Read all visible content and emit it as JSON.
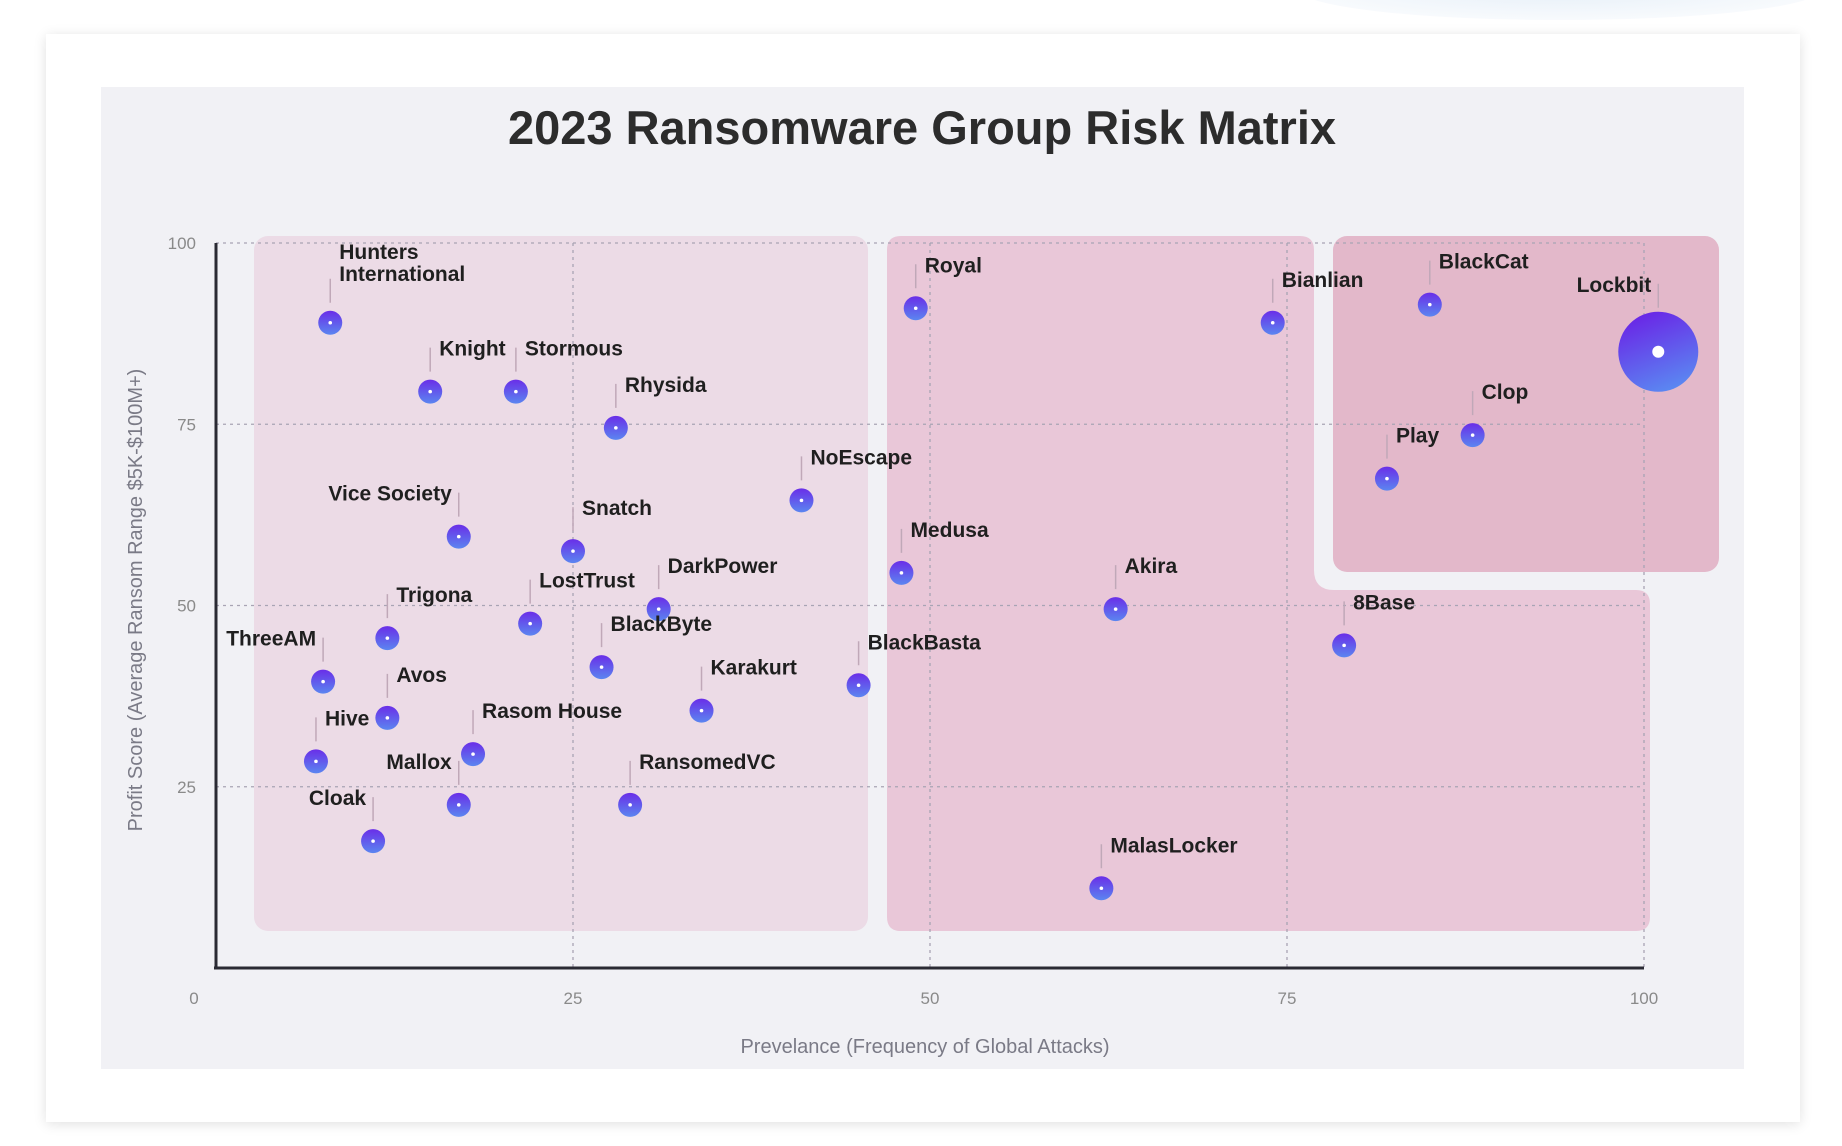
{
  "chart_data": {
    "type": "scatter",
    "title": "2023 Ransomware Group Risk Matrix",
    "xlabel": "Prevelance (Frequency of Global Attacks)",
    "ylabel": "Profit Score (Average Ransom Range  $5K-$100M+)",
    "xlim": [
      0,
      100
    ],
    "ylim": [
      0,
      100
    ],
    "xticks": [
      "0",
      "25",
      "50",
      "75",
      "100"
    ],
    "yticks": [
      "25",
      "50",
      "75",
      "100"
    ],
    "grid": true,
    "points": [
      {
        "name": "Hunters International",
        "x": 8,
        "y": 89,
        "label_side": "right"
      },
      {
        "name": "Knight",
        "x": 15,
        "y": 79.5,
        "label_side": "right"
      },
      {
        "name": "Stormous",
        "x": 21,
        "y": 79.5,
        "label_side": "right"
      },
      {
        "name": "Rhysida",
        "x": 28,
        "y": 74.5,
        "label_side": "right"
      },
      {
        "name": "Vice Society",
        "x": 17,
        "y": 59.5,
        "label_side": "left"
      },
      {
        "name": "Snatch",
        "x": 25,
        "y": 57.5,
        "label_side": "right"
      },
      {
        "name": "NoEscape",
        "x": 41,
        "y": 64.5,
        "label_side": "right"
      },
      {
        "name": "Trigona",
        "x": 12,
        "y": 45.5,
        "label_side": "right"
      },
      {
        "name": "LostTrust",
        "x": 22,
        "y": 47.5,
        "label_side": "right"
      },
      {
        "name": "DarkPower",
        "x": 31,
        "y": 49.5,
        "label_side": "right"
      },
      {
        "name": "ThreeAM",
        "x": 7.5,
        "y": 39.5,
        "label_side": "left"
      },
      {
        "name": "BlackByte",
        "x": 27,
        "y": 41.5,
        "label_side": "right"
      },
      {
        "name": "Avos",
        "x": 12,
        "y": 34.5,
        "label_side": "right"
      },
      {
        "name": "Karakurt",
        "x": 34,
        "y": 35.5,
        "label_side": "right"
      },
      {
        "name": "BlackBasta",
        "x": 45,
        "y": 39,
        "label_side": "right"
      },
      {
        "name": "Hive",
        "x": 7,
        "y": 28.5,
        "label_side": "right"
      },
      {
        "name": "Rasom House",
        "x": 18,
        "y": 29.5,
        "label_side": "right"
      },
      {
        "name": "Mallox",
        "x": 17,
        "y": 22.5,
        "label_side": "left"
      },
      {
        "name": "RansomedVC",
        "x": 29,
        "y": 22.5,
        "label_side": "right"
      },
      {
        "name": "Cloak",
        "x": 11,
        "y": 17.5,
        "label_side": "left"
      },
      {
        "name": "Royal",
        "x": 49,
        "y": 91,
        "label_side": "right"
      },
      {
        "name": "Medusa",
        "x": 48,
        "y": 54.5,
        "label_side": "right"
      },
      {
        "name": "Akira",
        "x": 63,
        "y": 49.5,
        "label_side": "right"
      },
      {
        "name": "MalasLocker",
        "x": 62,
        "y": 11,
        "label_side": "right"
      },
      {
        "name": "Bianlian",
        "x": 74,
        "y": 89,
        "label_side": "right"
      },
      {
        "name": "8Base",
        "x": 79,
        "y": 44.5,
        "label_side": "right"
      },
      {
        "name": "BlackCat",
        "x": 85,
        "y": 91.5,
        "label_side": "right"
      },
      {
        "name": "Lockbit",
        "x": 101,
        "y": 85,
        "label_side": "left",
        "large": true
      },
      {
        "name": "Clop",
        "x": 88,
        "y": 73.5,
        "label_side": "right"
      },
      {
        "name": "Play",
        "x": 82,
        "y": 67.5,
        "label_side": "right"
      }
    ],
    "colors": {
      "point_top": "#6a2ee8",
      "point_bottom": "#5b86f0",
      "region_low": "#ecdbe6",
      "region_mid": "#e9c7d8",
      "region_high": "#e3b8ca",
      "axis": "#2a2a33",
      "grid": "#a8a4b4"
    }
  }
}
